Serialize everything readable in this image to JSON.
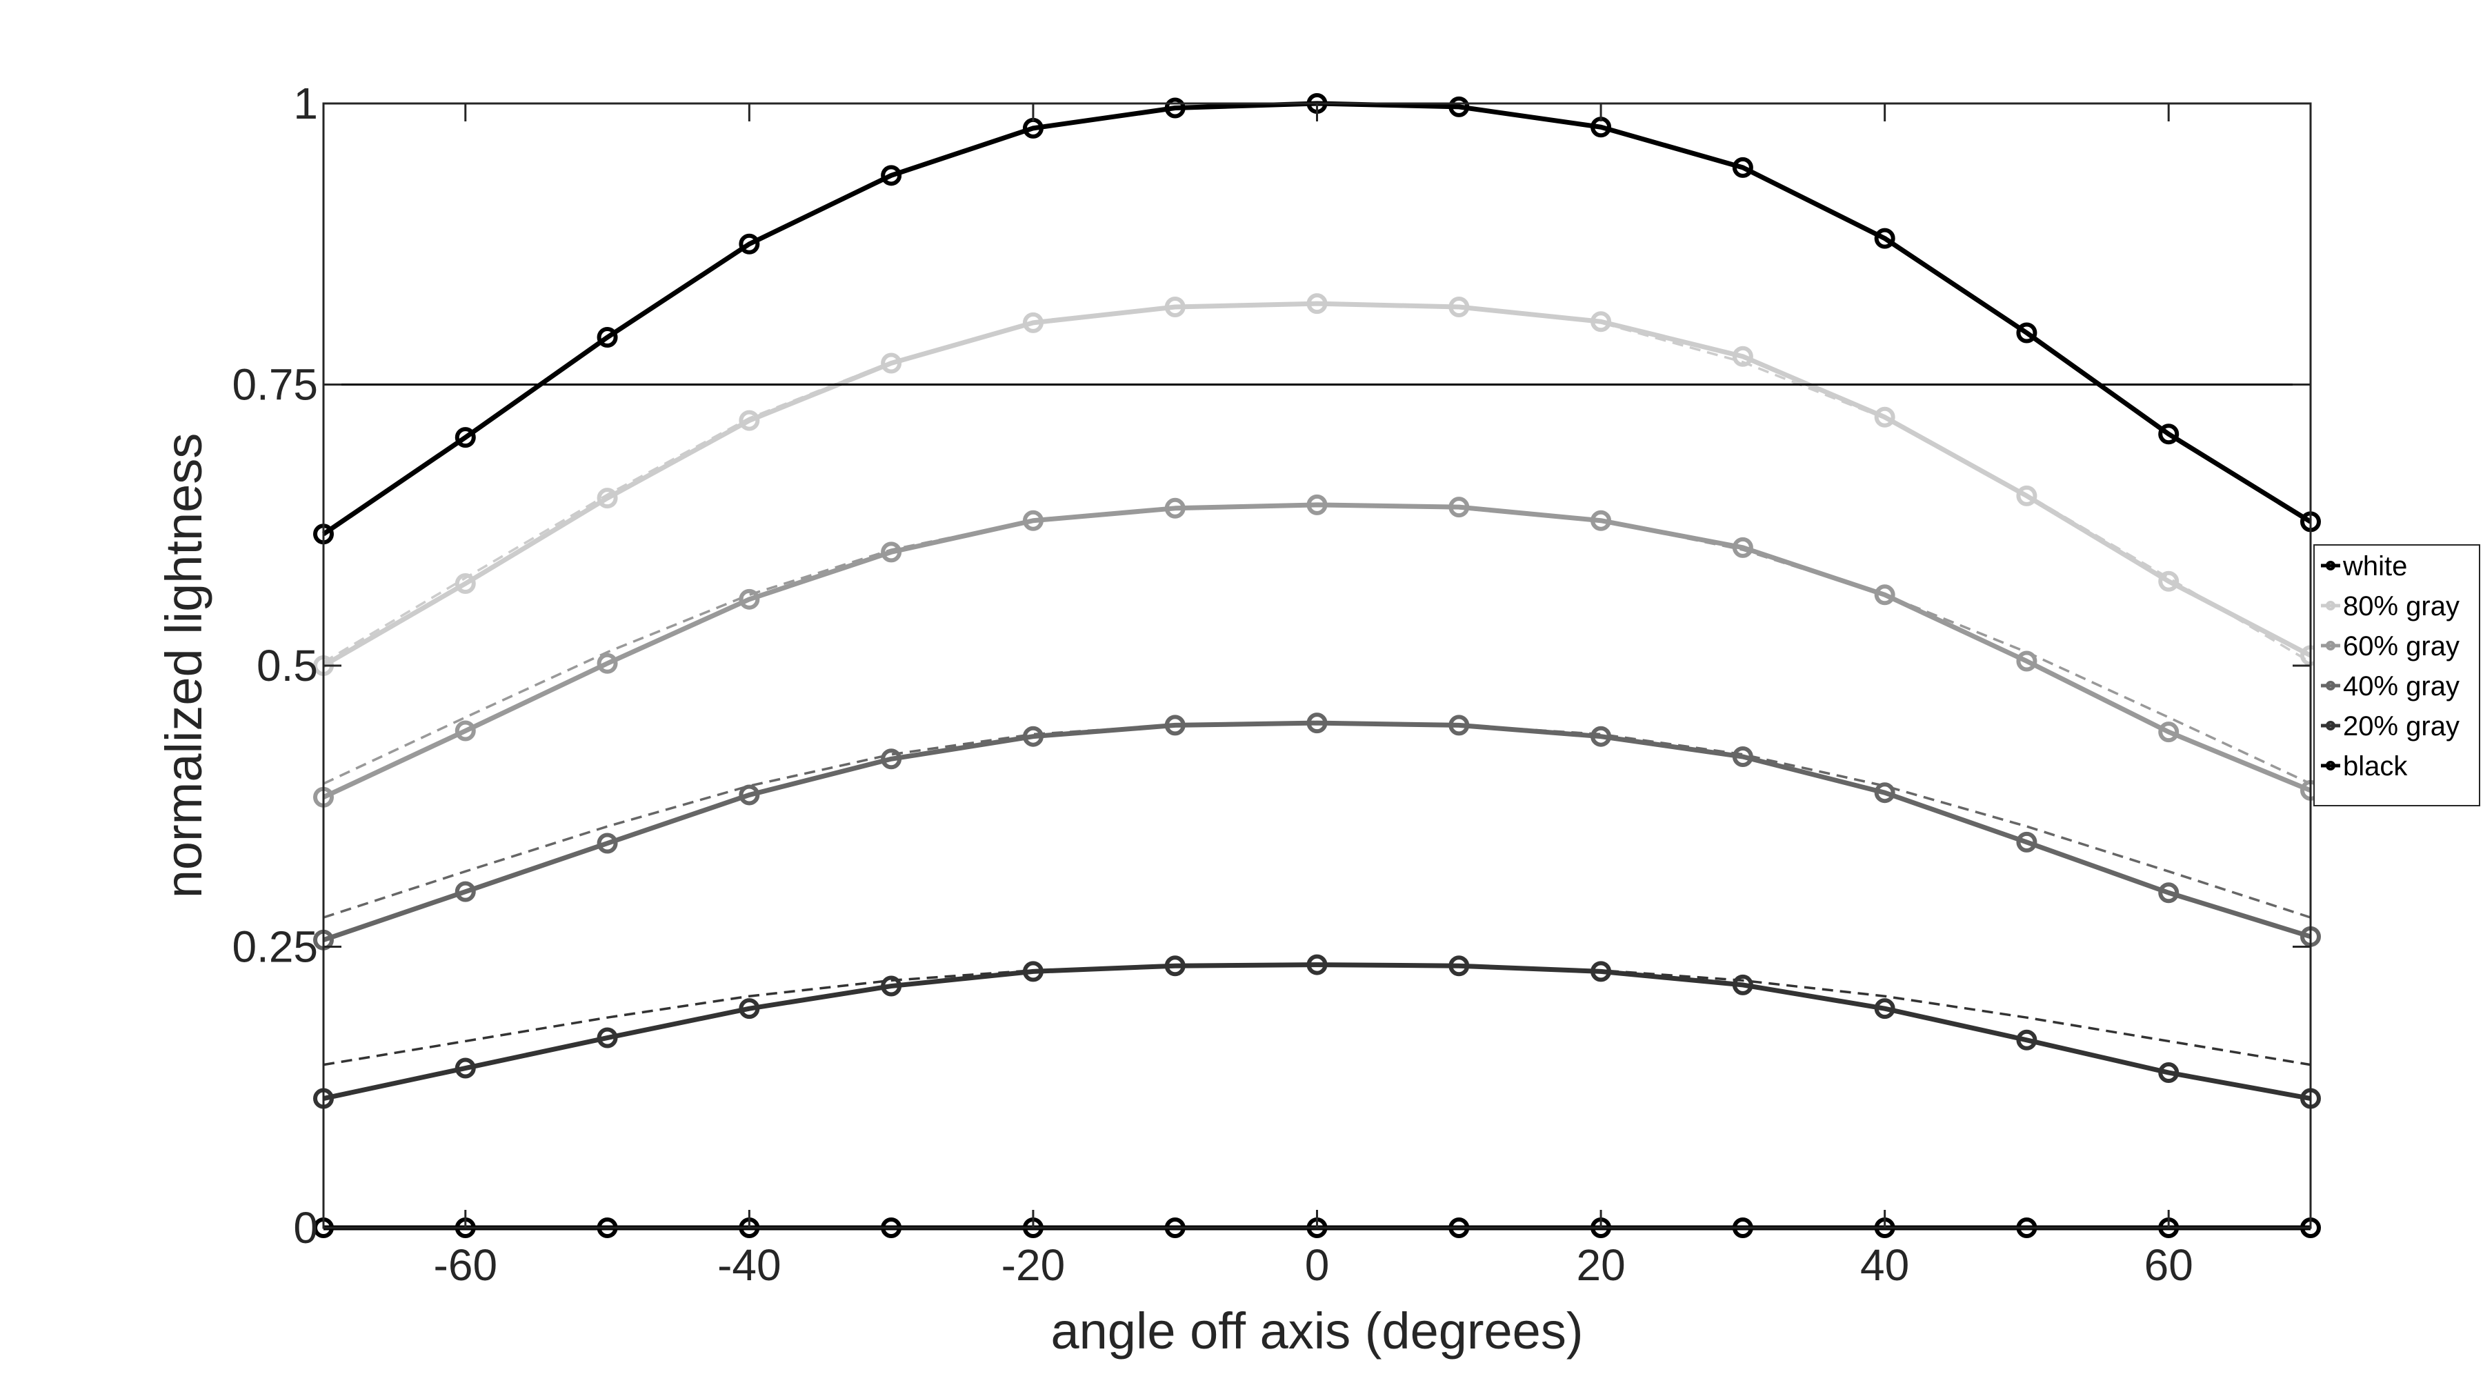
{
  "chart_data": {
    "type": "line",
    "xlabel": "angle off axis (degrees)",
    "ylabel": "normalized lightness",
    "xlim": [
      -70,
      70
    ],
    "ylim": [
      0,
      1
    ],
    "xticks": [
      -60,
      -40,
      -20,
      0,
      20,
      40,
      60
    ],
    "xtick_labels": [
      "-60",
      "-40",
      "-20",
      "0",
      "20",
      "40",
      "60"
    ],
    "yticks": [
      0,
      0.25,
      0.5,
      0.75,
      1
    ],
    "ytick_labels": [
      "0",
      "0.25",
      "0.5",
      "0.75",
      "1"
    ],
    "reference_line": 0.75,
    "grid": false,
    "legend_position": "right",
    "x": [
      -70,
      -60,
      -50,
      -40,
      -30,
      -20,
      -10,
      0,
      10,
      20,
      30,
      40,
      50,
      60,
      70
    ],
    "series": [
      {
        "name": "white",
        "color": "#000000",
        "values": [
          0.617,
          0.703,
          0.792,
          0.875,
          0.936,
          0.978,
          0.996,
          1.0,
          0.997,
          0.979,
          0.943,
          0.88,
          0.796,
          0.706,
          0.628
        ]
      },
      {
        "name": "80% gray",
        "color": "#cccccc",
        "values": [
          0.5,
          0.573,
          0.649,
          0.718,
          0.769,
          0.805,
          0.819,
          0.822,
          0.819,
          0.806,
          0.775,
          0.721,
          0.651,
          0.575,
          0.509
        ]
      },
      {
        "name": "60% gray",
        "color": "#999999",
        "values": [
          0.383,
          0.442,
          0.502,
          0.559,
          0.601,
          0.629,
          0.64,
          0.643,
          0.641,
          0.629,
          0.605,
          0.563,
          0.504,
          0.441,
          0.389
        ]
      },
      {
        "name": "40% gray",
        "color": "#666666",
        "values": [
          0.256,
          0.299,
          0.342,
          0.385,
          0.417,
          0.437,
          0.447,
          0.449,
          0.447,
          0.437,
          0.419,
          0.387,
          0.343,
          0.298,
          0.259
        ]
      },
      {
        "name": "20% gray",
        "color": "#333333",
        "values": [
          0.115,
          0.142,
          0.169,
          0.195,
          0.215,
          0.228,
          0.233,
          0.234,
          0.233,
          0.228,
          0.216,
          0.195,
          0.167,
          0.138,
          0.115
        ]
      },
      {
        "name": "black",
        "color": "#000000",
        "values": [
          0,
          0,
          0,
          0,
          0,
          0,
          0,
          0,
          0,
          0,
          0,
          0,
          0,
          0,
          0
        ]
      }
    ],
    "dashed_series": [
      {
        "color": "#cccccc",
        "values": [
          0.503,
          0.578,
          0.652,
          0.72,
          0.77,
          0.805,
          0.819,
          0.822,
          0.819,
          0.805,
          0.77,
          0.72,
          0.652,
          0.578,
          0.503
        ]
      },
      {
        "color": "#999999",
        "values": [
          0.395,
          0.454,
          0.512,
          0.563,
          0.603,
          0.629,
          0.64,
          0.643,
          0.64,
          0.629,
          0.603,
          0.563,
          0.512,
          0.454,
          0.395
        ]
      },
      {
        "color": "#666666",
        "values": [
          0.276,
          0.317,
          0.357,
          0.393,
          0.421,
          0.439,
          0.447,
          0.449,
          0.447,
          0.439,
          0.421,
          0.393,
          0.357,
          0.317,
          0.276
        ]
      },
      {
        "color": "#333333",
        "values": [
          0.145,
          0.166,
          0.187,
          0.206,
          0.22,
          0.229,
          0.233,
          0.234,
          0.233,
          0.229,
          0.22,
          0.206,
          0.187,
          0.166,
          0.145
        ]
      }
    ]
  }
}
